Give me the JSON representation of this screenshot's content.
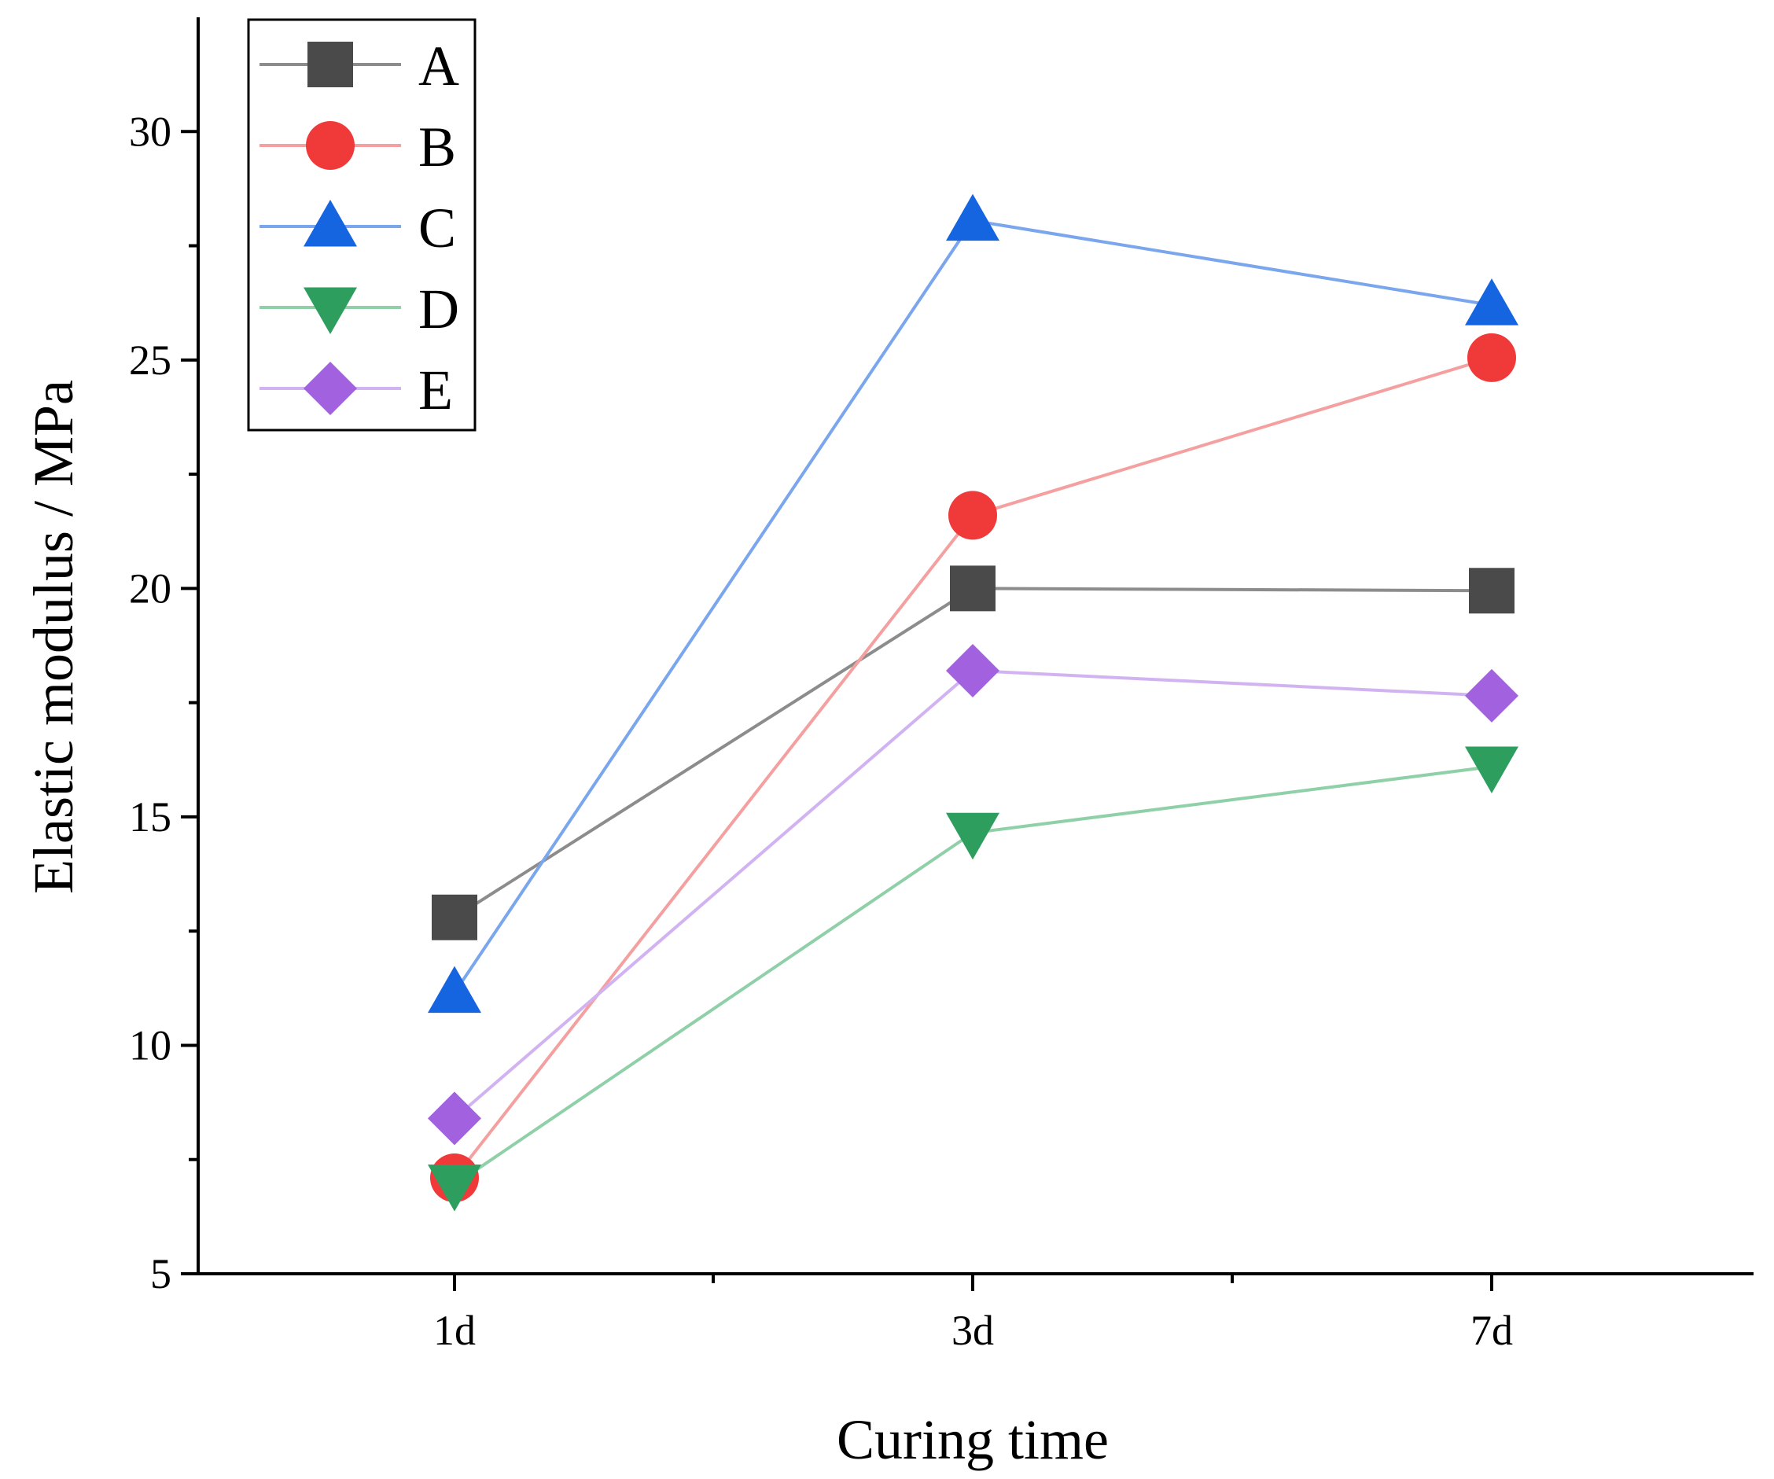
{
  "chart_data": {
    "type": "line",
    "title": "",
    "xlabel": "Curing time",
    "ylabel": "Elastic modulus / MPa",
    "categories": [
      "1d",
      "3d",
      "7d"
    ],
    "ylim": [
      5,
      32.5
    ],
    "yticks": [
      5,
      10,
      15,
      20,
      25,
      30
    ],
    "ytick_labels": [
      "5",
      "10",
      "15",
      "20",
      "25",
      "30"
    ],
    "legend_position": "top-left",
    "series": [
      {
        "name": "A",
        "marker": "square",
        "marker_color": "#4a4a4a",
        "line_color": "#8c8c8c",
        "values": [
          12.8,
          20.0,
          19.95
        ]
      },
      {
        "name": "B",
        "marker": "circle",
        "marker_color": "#f03a3a",
        "line_color": "#f5a0a0",
        "values": [
          7.1,
          21.6,
          25.05
        ]
      },
      {
        "name": "C",
        "marker": "triangle-up",
        "marker_color": "#1565e0",
        "line_color": "#7aa6ee",
        "values": [
          11.15,
          28.05,
          26.2
        ]
      },
      {
        "name": "D",
        "marker": "triangle-down",
        "marker_color": "#2e9e5e",
        "line_color": "#8fd0a8",
        "values": [
          6.95,
          14.65,
          16.1
        ]
      },
      {
        "name": "E",
        "marker": "diamond",
        "marker_color": "#a262e0",
        "line_color": "#d2b3f2",
        "values": [
          8.4,
          18.2,
          17.65
        ]
      }
    ]
  }
}
